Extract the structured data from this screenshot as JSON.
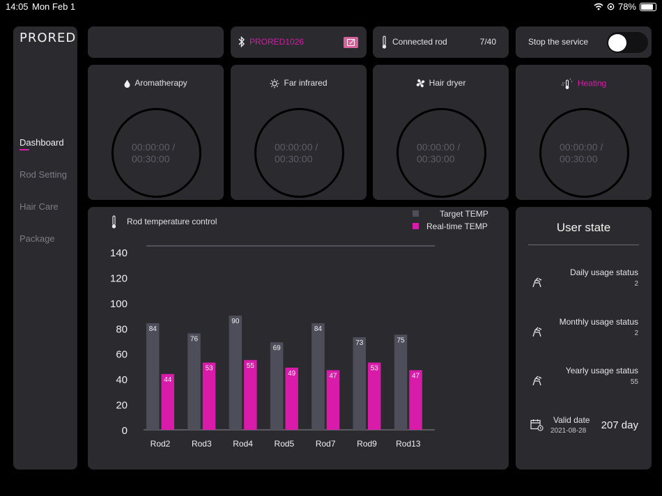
{
  "status_bar": {
    "time": "14:05",
    "date": "Mon Feb 1",
    "battery": "78%"
  },
  "sidebar": {
    "logo": "PRORED",
    "items": [
      {
        "label": "Dashboard",
        "active": true
      },
      {
        "label": "Rod Setting",
        "active": false
      },
      {
        "label": "Hair Care",
        "active": false
      },
      {
        "label": "Package",
        "active": false
      }
    ]
  },
  "header": {
    "device_name": "PRORED1026",
    "connected_label": "Connected rod",
    "connected_count": "7/40",
    "service_label": "Stop the service",
    "service_on": false
  },
  "modes": [
    {
      "label": "Aromatherapy",
      "icon": "drop-icon",
      "active": false,
      "elapsed": "00:00:00 /",
      "total": "00:30:00"
    },
    {
      "label": "Far infrared",
      "icon": "sun-icon",
      "active": false,
      "elapsed": "00:00:00 /",
      "total": "00:30:00"
    },
    {
      "label": "Hair dryer",
      "icon": "fan-icon",
      "active": false,
      "elapsed": "00:00:00 /",
      "total": "00:30:00"
    },
    {
      "label": "Heating",
      "icon": "heat-icon",
      "active": true,
      "elapsed": "00:00:00 /",
      "total": "00:30:00"
    }
  ],
  "chart_panel": {
    "title": "Rod temperature control"
  },
  "colors": {
    "accent": "#d81ba8",
    "target": "#4d4e5a",
    "card": "#2a2a2f"
  },
  "chart_data": {
    "type": "bar",
    "categories": [
      "Rod2",
      "Rod3",
      "Rod4",
      "Rod5",
      "Rod7",
      "Rod9",
      "Rod13"
    ],
    "series": [
      {
        "name": "Target TEMP",
        "values": [
          84,
          76,
          90,
          69,
          84,
          73,
          75
        ]
      },
      {
        "name": "Real-time TEMP",
        "values": [
          44,
          53,
          55,
          49,
          47,
          53,
          47
        ]
      }
    ],
    "yticks": [
      0,
      20,
      40,
      60,
      80,
      100,
      120,
      140
    ],
    "ylim": [
      0,
      140
    ],
    "legend": "top-right",
    "grid": false
  },
  "user_state": {
    "title": "User state",
    "daily": {
      "label": "Daily usage status",
      "value": "2"
    },
    "monthly": {
      "label": "Monthly usage status",
      "value": "2"
    },
    "yearly": {
      "label": "Yearly usage status",
      "value": "55"
    },
    "valid": {
      "label": "Valid date",
      "date": "2021-08-28",
      "days": "207 day"
    }
  }
}
